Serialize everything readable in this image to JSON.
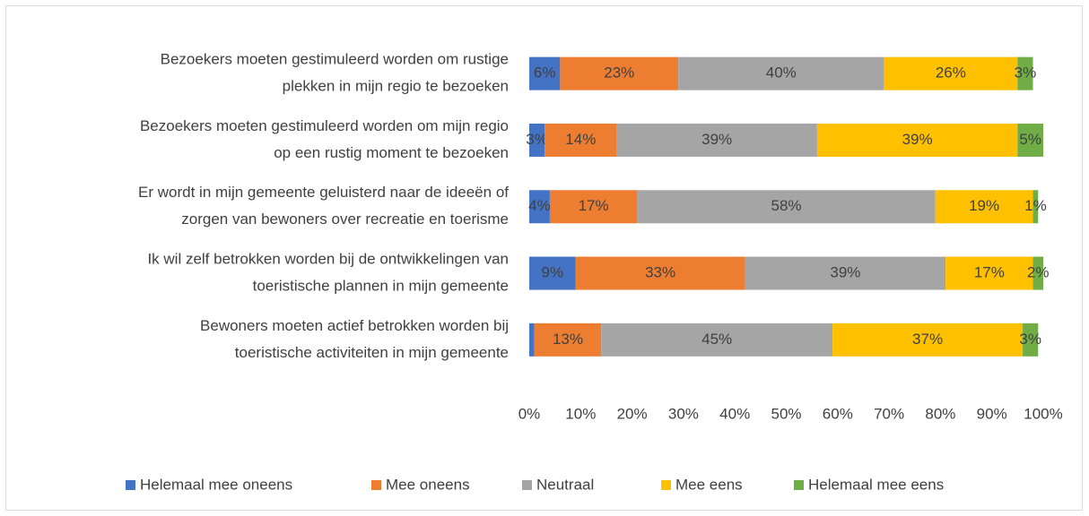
{
  "chart_data": {
    "type": "stacked_bar_horizontal",
    "categories": [
      [
        "Bezoekers moeten gestimuleerd worden om rustige",
        "plekken in mijn regio te bezoeken"
      ],
      [
        "Bezoekers moeten gestimuleerd worden om mijn regio",
        "op een rustig moment te bezoeken"
      ],
      [
        "Er wordt in mijn gemeente geluisterd naar de ideeën of",
        "zorgen van bewoners over recreatie en toerisme"
      ],
      [
        "Ik wil zelf betrokken worden bij de ontwikkelingen van",
        "toeristische plannen in mijn gemeente"
      ],
      [
        "Bewoners moeten actief betrokken worden bij",
        "toeristische activiteiten in mijn gemeente"
      ]
    ],
    "series": [
      {
        "name": "Helemaal mee oneens",
        "color": "#4472c4",
        "values": [
          6,
          3,
          4,
          9,
          1
        ],
        "value_labels": [
          "6%",
          "3%",
          "4%",
          "9%",
          null
        ]
      },
      {
        "name": "Mee oneens",
        "color": "#ed7d31",
        "values": [
          23,
          14,
          17,
          33,
          13
        ],
        "value_labels": [
          "23%",
          "14%",
          "17%",
          "33%",
          "13%"
        ]
      },
      {
        "name": "Neutraal",
        "color": "#a5a5a5",
        "values": [
          40,
          39,
          58,
          39,
          45
        ],
        "value_labels": [
          "40%",
          "39%",
          "58%",
          "39%",
          "45%"
        ]
      },
      {
        "name": "Mee eens",
        "color": "#ffc000",
        "values": [
          26,
          39,
          19,
          17,
          37
        ],
        "value_labels": [
          "26%",
          "39%",
          "19%",
          "17%",
          "37%"
        ]
      },
      {
        "name": "Helemaal mee eens",
        "color": "#70ad47",
        "values": [
          3,
          5,
          1,
          2,
          3
        ],
        "value_labels": [
          "3%",
          "5%",
          "1%",
          "2%",
          "3%"
        ]
      }
    ],
    "xlim": [
      0,
      100
    ],
    "xticks": [
      {
        "value": 0,
        "label": "0%"
      },
      {
        "value": 10,
        "label": "10%"
      },
      {
        "value": 20,
        "label": "20%"
      },
      {
        "value": 30,
        "label": "30%"
      },
      {
        "value": 40,
        "label": "40%"
      },
      {
        "value": 50,
        "label": "50%"
      },
      {
        "value": 60,
        "label": "60%"
      },
      {
        "value": 70,
        "label": "70%"
      },
      {
        "value": 80,
        "label": "80%"
      },
      {
        "value": 90,
        "label": "90%"
      },
      {
        "value": 100,
        "label": "100%"
      }
    ],
    "legend": "bottom"
  }
}
